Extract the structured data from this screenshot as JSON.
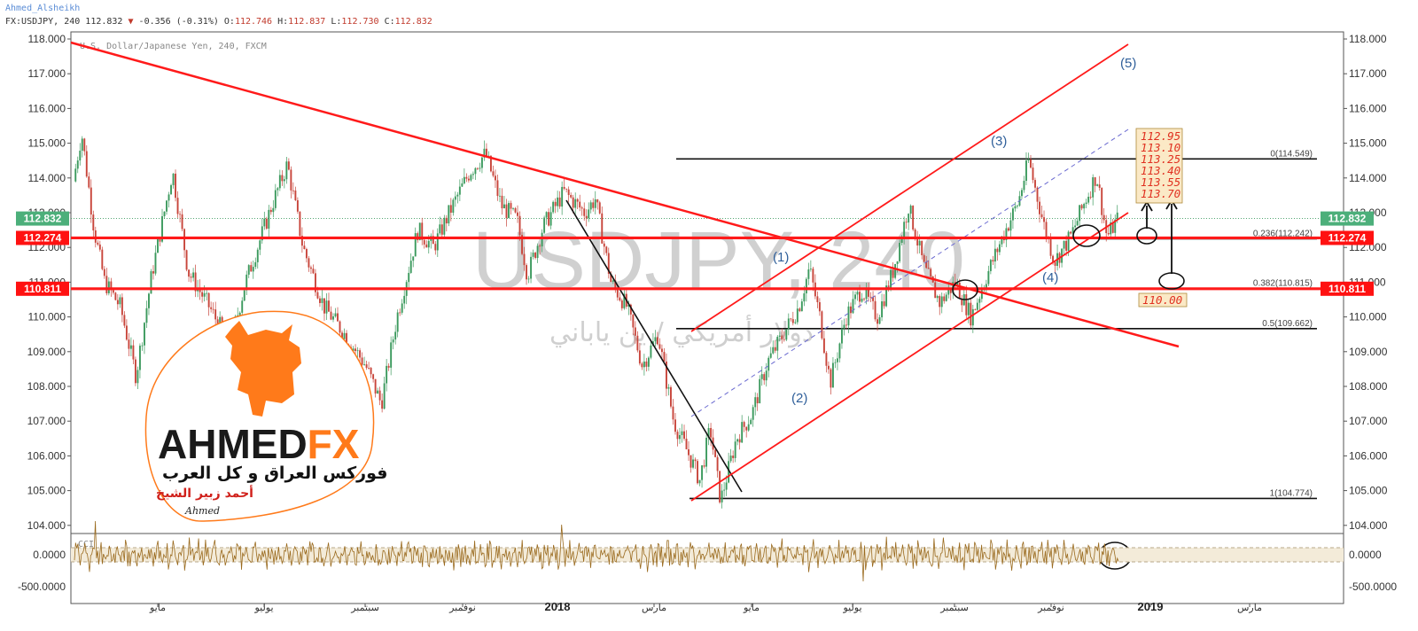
{
  "header": {
    "author": "Ahmed_Alsheikh",
    "symbol_line_prefix": "FX:USDJPY, 240 112.832",
    "change_arrow": "▼",
    "change_text": "-0.356 (-0.31%)",
    "o_label": "O:",
    "o_value": "112.746",
    "h_label": "H:",
    "h_value": "112.837",
    "l_label": "L:",
    "l_value": "112.730",
    "c_label": "C:",
    "c_value": "112.832",
    "subtitle": "U.S. Dollar/Japanese Yen, 240, FXCM"
  },
  "watermark": {
    "symbol": "USDJPY, 240",
    "arabic": "دولار أمريكي / ين ياباني"
  },
  "logo": {
    "brand": "AHMEDFX",
    "tagline": "فوركس العراق و كل العرب",
    "name": "أحمد زبير الشيخ",
    "signature": "Ahmed"
  },
  "colors": {
    "price_up": "#3c9a5e",
    "price_down": "#c8453b",
    "trendline": "#ff1a1a",
    "fib_line": "#111111",
    "price_tag": "#4caf7a",
    "level_tag": "#ff1111",
    "cci": "#9a6a1e",
    "cci_band": "#f3ebd9",
    "logo_orange": "#ff7a1a"
  },
  "chart_data": {
    "type": "line",
    "symbol": "FX:USDJPY",
    "timeframe": "240",
    "y_axis": {
      "ticks": [
        "118.000",
        "117.000",
        "116.000",
        "115.000",
        "114.000",
        "113.000",
        "112.000",
        "111.000",
        "110.000",
        "109.000",
        "108.000",
        "107.000",
        "106.000",
        "105.000",
        "104.000"
      ],
      "ylim": [
        104.0,
        118.0
      ]
    },
    "x_axis": {
      "ticks": [
        "مايو",
        "يوليو",
        "سبتمبر",
        "نوفمبر",
        "2018",
        "مارس",
        "مايو",
        "يوليو",
        "سبتمبر",
        "نوفمبر",
        "2019",
        "مارس"
      ]
    },
    "current_price": "112.832",
    "horizontal_levels": [
      "112.274",
      "110.811"
    ],
    "fibonacci": [
      {
        "label": "0(114.549)",
        "value": 114.549
      },
      {
        "label": "0.236(112.242)",
        "value": 112.242
      },
      {
        "label": "0.382(110.815)",
        "value": 110.815
      },
      {
        "label": "0.5(109.662)",
        "value": 109.662
      },
      {
        "label": "1(104.774)",
        "value": 104.774
      }
    ],
    "waves": [
      "(1)",
      "(2)",
      "(3)",
      "(4)",
      "(5)"
    ],
    "targets_up": [
      "112.95",
      "113.10",
      "113.25",
      "113.40",
      "113.55",
      "113.70"
    ],
    "target_down": "110.00",
    "price_path": [
      {
        "t": 0,
        "v": 113.9
      },
      {
        "t": 0.008,
        "v": 115.3
      },
      {
        "t": 0.02,
        "v": 112.5
      },
      {
        "t": 0.03,
        "v": 111.0
      },
      {
        "t": 0.045,
        "v": 110.3
      },
      {
        "t": 0.06,
        "v": 108.3
      },
      {
        "t": 0.075,
        "v": 111.2
      },
      {
        "t": 0.095,
        "v": 114.2
      },
      {
        "t": 0.11,
        "v": 111.3
      },
      {
        "t": 0.13,
        "v": 110.3
      },
      {
        "t": 0.15,
        "v": 109.2
      },
      {
        "t": 0.165,
        "v": 111.0
      },
      {
        "t": 0.19,
        "v": 113.2
      },
      {
        "t": 0.205,
        "v": 114.4
      },
      {
        "t": 0.22,
        "v": 112.0
      },
      {
        "t": 0.24,
        "v": 110.3
      },
      {
        "t": 0.26,
        "v": 109.5
      },
      {
        "t": 0.28,
        "v": 108.6
      },
      {
        "t": 0.295,
        "v": 107.5
      },
      {
        "t": 0.31,
        "v": 110.0
      },
      {
        "t": 0.33,
        "v": 112.5
      },
      {
        "t": 0.345,
        "v": 112.0
      },
      {
        "t": 0.36,
        "v": 113.0
      },
      {
        "t": 0.38,
        "v": 114.2
      },
      {
        "t": 0.395,
        "v": 114.7
      },
      {
        "t": 0.41,
        "v": 113.2
      },
      {
        "t": 0.425,
        "v": 112.8
      },
      {
        "t": 0.435,
        "v": 111.2
      },
      {
        "t": 0.45,
        "v": 112.6
      },
      {
        "t": 0.47,
        "v": 113.6
      },
      {
        "t": 0.49,
        "v": 113.0
      },
      {
        "t": 0.5,
        "v": 113.4
      },
      {
        "t": 0.515,
        "v": 111.0
      },
      {
        "t": 0.53,
        "v": 110.3
      },
      {
        "t": 0.545,
        "v": 108.6
      },
      {
        "t": 0.56,
        "v": 109.5
      },
      {
        "t": 0.575,
        "v": 107.0
      },
      {
        "t": 0.59,
        "v": 106.0
      },
      {
        "t": 0.6,
        "v": 105.3
      },
      {
        "t": 0.61,
        "v": 106.8
      },
      {
        "t": 0.62,
        "v": 104.7
      },
      {
        "t": 0.635,
        "v": 106.5
      },
      {
        "t": 0.65,
        "v": 107.2
      },
      {
        "t": 0.665,
        "v": 108.7
      },
      {
        "t": 0.68,
        "v": 109.5
      },
      {
        "t": 0.695,
        "v": 110.3
      },
      {
        "t": 0.705,
        "v": 111.4
      },
      {
        "t": 0.715,
        "v": 110.0
      },
      {
        "t": 0.725,
        "v": 108.1
      },
      {
        "t": 0.74,
        "v": 110.0
      },
      {
        "t": 0.755,
        "v": 110.8
      },
      {
        "t": 0.77,
        "v": 110.0
      },
      {
        "t": 0.785,
        "v": 111.3
      },
      {
        "t": 0.8,
        "v": 113.2
      },
      {
        "t": 0.815,
        "v": 111.4
      },
      {
        "t": 0.83,
        "v": 110.4
      },
      {
        "t": 0.845,
        "v": 111.0
      },
      {
        "t": 0.86,
        "v": 110.0
      },
      {
        "t": 0.875,
        "v": 111.2
      },
      {
        "t": 0.89,
        "v": 112.3
      },
      {
        "t": 0.905,
        "v": 113.3
      },
      {
        "t": 0.915,
        "v": 114.5
      },
      {
        "t": 0.93,
        "v": 112.6
      },
      {
        "t": 0.94,
        "v": 111.6
      },
      {
        "t": 0.955,
        "v": 112.3
      },
      {
        "t": 0.97,
        "v": 113.4
      },
      {
        "t": 0.98,
        "v": 114.1
      },
      {
        "t": 0.99,
        "v": 112.3
      },
      {
        "t": 1.0,
        "v": 112.8
      }
    ],
    "indicator": {
      "name": "CCI",
      "ticks": [
        "0.0000",
        "-500.0000"
      ]
    }
  }
}
